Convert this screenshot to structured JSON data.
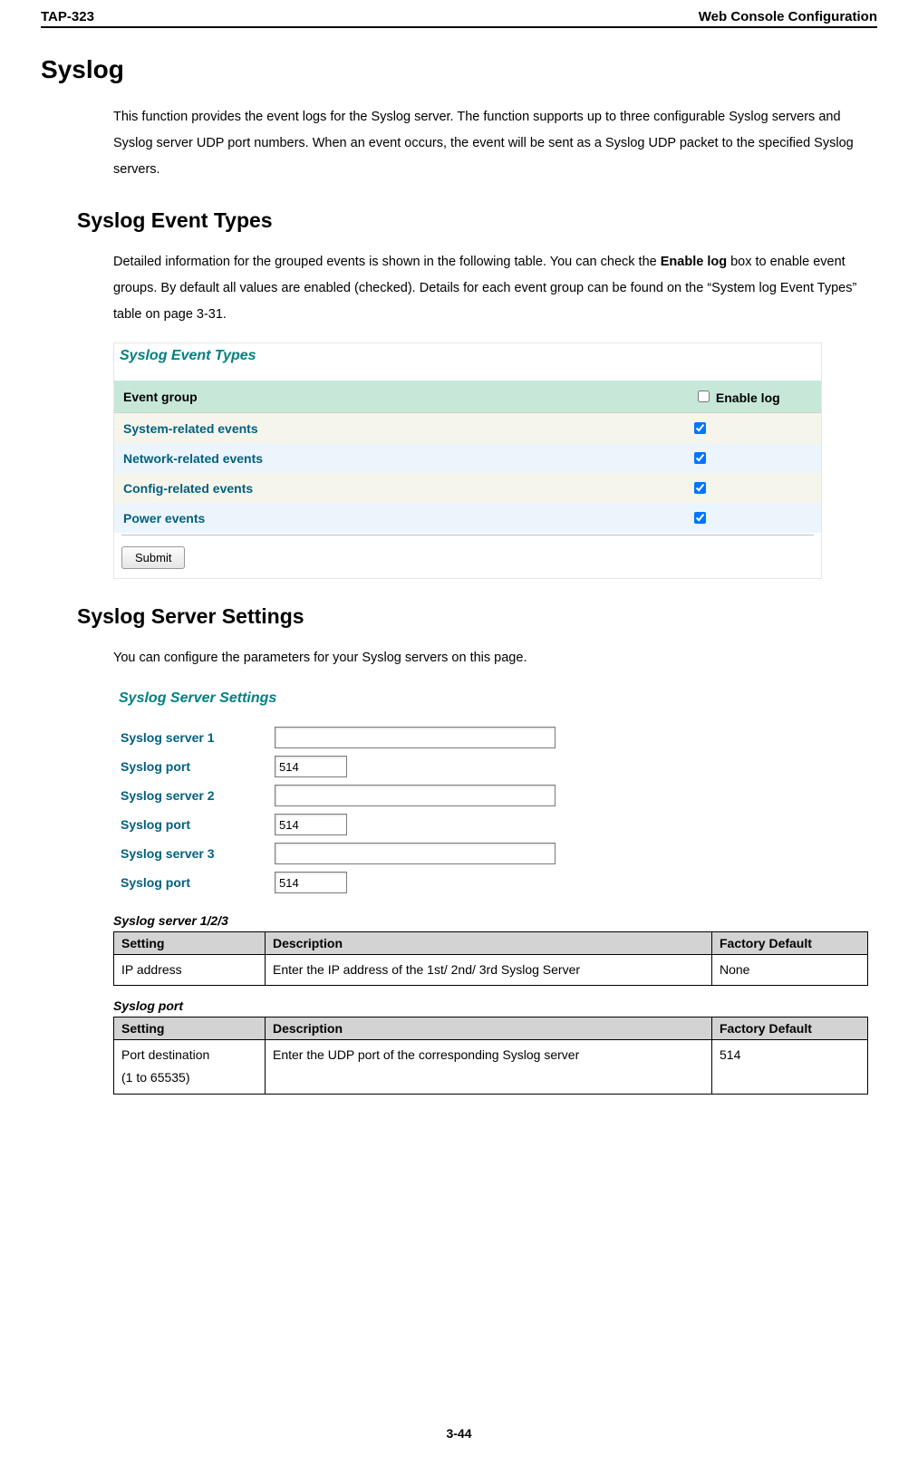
{
  "header": {
    "left": "TAP-323",
    "right": "Web Console Configuration"
  },
  "h1": "Syslog",
  "intro": "This function provides the event logs for the Syslog server. The function supports up to three configurable Syslog servers and Syslog server UDP port numbers. When an event occurs, the event will be sent as a Syslog UDP packet to the specified Syslog servers.",
  "h2a": "Syslog Event Types",
  "evt_intro_pre": "Detailed information for the grouped events is shown in the following table. You can check the ",
  "evt_intro_bold": "Enable log",
  "evt_intro_post": " box to enable event groups. By default all values are enabled (checked). Details for each event group can be found on the “System log Event Types” table on page 3-31.",
  "shot1": {
    "title": "Syslog Event Types",
    "col_group": "Event group",
    "col_enable": "Enable log",
    "rows": [
      {
        "label": "System-related events",
        "checked": true,
        "alt": true
      },
      {
        "label": "Network-related events",
        "checked": true,
        "alt": false
      },
      {
        "label": "Config-related events",
        "checked": true,
        "alt": true
      },
      {
        "label": "Power events",
        "checked": true,
        "alt": false
      }
    ],
    "submit": "Submit"
  },
  "h2b": "Syslog Server Settings",
  "srv_intro": "You can configure the parameters for your Syslog servers on this page.",
  "shot2": {
    "title": "Syslog Server Settings",
    "rows": [
      {
        "label": "Syslog server 1",
        "value": "",
        "wide": true
      },
      {
        "label": "Syslog port",
        "value": "514",
        "wide": false
      },
      {
        "label": "Syslog server 2",
        "value": "",
        "wide": true
      },
      {
        "label": "Syslog port",
        "value": "514",
        "wide": false
      },
      {
        "label": "Syslog server 3",
        "value": "",
        "wide": true
      },
      {
        "label": "Syslog port",
        "value": "514",
        "wide": false
      }
    ]
  },
  "tbl1": {
    "caption": "Syslog server 1/2/3",
    "h1": "Setting",
    "h2": "Description",
    "h3": "Factory Default",
    "r1c1": "IP address",
    "r1c2": "Enter the IP address of the 1st/ 2nd/ 3rd Syslog Server",
    "r1c3": "None"
  },
  "tbl2": {
    "caption": "Syslog port",
    "h1": "Setting",
    "h2": "Description",
    "h3": "Factory Default",
    "r1c1": "Port destination\n(1 to 65535)",
    "r1c2": "Enter the UDP port of the corresponding Syslog server",
    "r1c3": "514"
  },
  "page_num": "3-44",
  "colors": {
    "teal": "#008080",
    "linkblue": "#006080",
    "header_bg": "#c7e8d8",
    "alt_bg": "#f6f5eb",
    "nor_bg": "#ecf5fb",
    "grey_bg": "#d3d3d3"
  }
}
